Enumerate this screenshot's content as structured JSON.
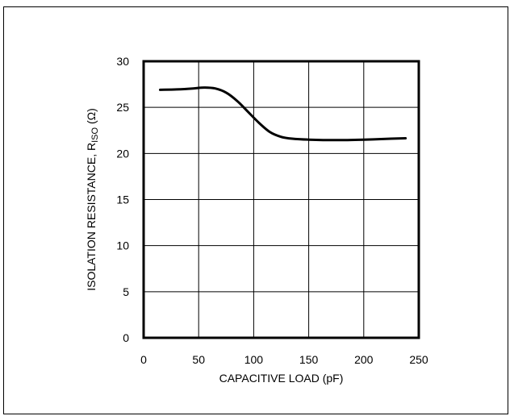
{
  "chart_data": {
    "type": "line",
    "xlabel": "CAPACITIVE LOAD (pF)",
    "ylabel": {
      "prefix": "ISOLATION RESISTANCE, R",
      "subscript": "ISO",
      "suffix": " (Ω)"
    },
    "xlim": [
      0,
      250
    ],
    "ylim": [
      0,
      30
    ],
    "xticks": [
      0,
      50,
      100,
      150,
      200,
      250
    ],
    "yticks": [
      0,
      5,
      10,
      15,
      20,
      25,
      30
    ],
    "grid": true,
    "series": [
      {
        "x": [
          15,
          30,
          45,
          55,
          65,
          75,
          85,
          95,
          105,
          115,
          125,
          135,
          150,
          175,
          200,
          225,
          238
        ],
        "y": [
          26.9,
          26.95,
          27.05,
          27.15,
          27.05,
          26.6,
          25.7,
          24.5,
          23.3,
          22.3,
          21.8,
          21.6,
          21.5,
          21.45,
          21.5,
          21.6,
          21.65
        ]
      }
    ]
  }
}
